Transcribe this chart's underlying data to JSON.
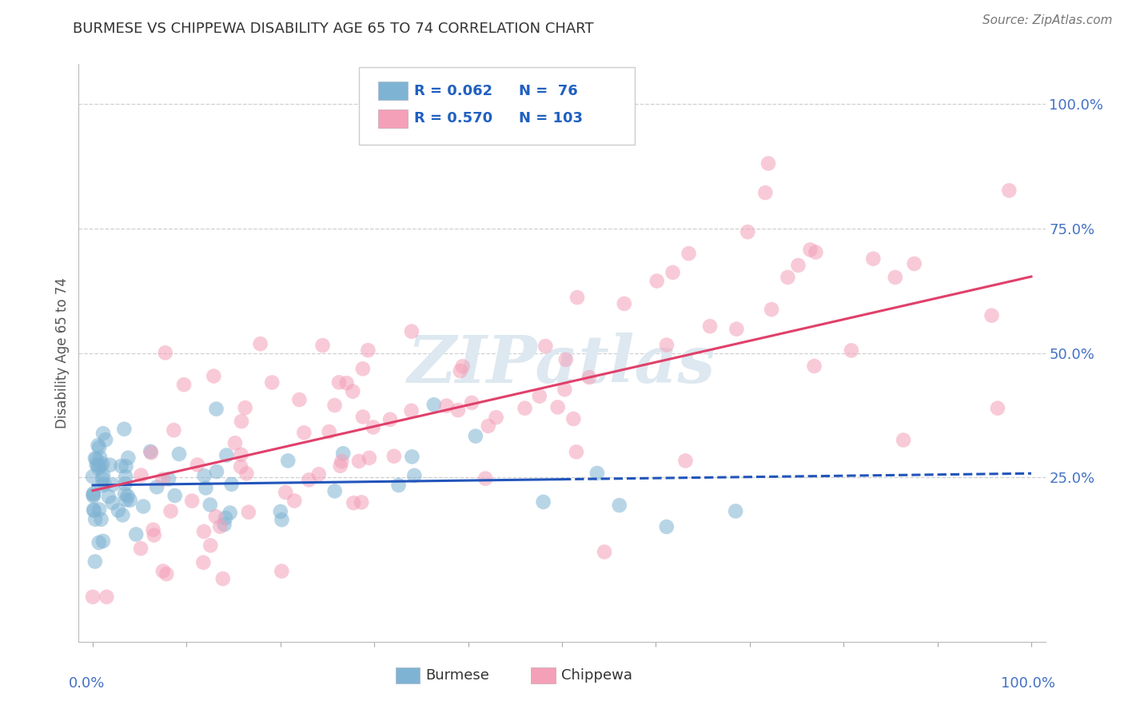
{
  "title": "BURMESE VS CHIPPEWA DISABILITY AGE 65 TO 74 CORRELATION CHART",
  "ylabel": "Disability Age 65 to 74",
  "source_text": "Source: ZipAtlas.com",
  "burmese_R": 0.062,
  "burmese_N": 76,
  "chippewa_R": 0.57,
  "chippewa_N": 103,
  "burmese_color": "#7fb3d3",
  "burmese_edge": "#7fb3d3",
  "chippewa_color": "#f4a0b8",
  "chippewa_edge": "#f4a0b8",
  "burmese_line_color": "#2255bb",
  "chippewa_line_color": "#e0406a",
  "bg_color": "#ffffff",
  "grid_color": "#d0d0d0",
  "title_color": "#333333",
  "axis_label_color": "#555555",
  "legend_text_color": "#2060c0",
  "right_tick_color": "#4472c4",
  "bottom_tick_color": "#4472c4",
  "watermark_color": "#dde8f0",
  "scatter_size": 180,
  "scatter_alpha": 0.55,
  "burmese_seed": 42,
  "chippewa_seed": 99,
  "xlim": [
    -0.015,
    1.015
  ],
  "ylim": [
    -0.08,
    1.08
  ],
  "y_ticks": [
    0.25,
    0.5,
    0.75,
    1.0
  ],
  "y_tick_labels": [
    "25.0%",
    "50.0%",
    "75.0%",
    "100.0%"
  ],
  "x_minor_ticks": [
    0.0,
    0.1,
    0.2,
    0.3,
    0.4,
    0.5,
    0.6,
    0.7,
    0.8,
    0.9,
    1.0
  ]
}
